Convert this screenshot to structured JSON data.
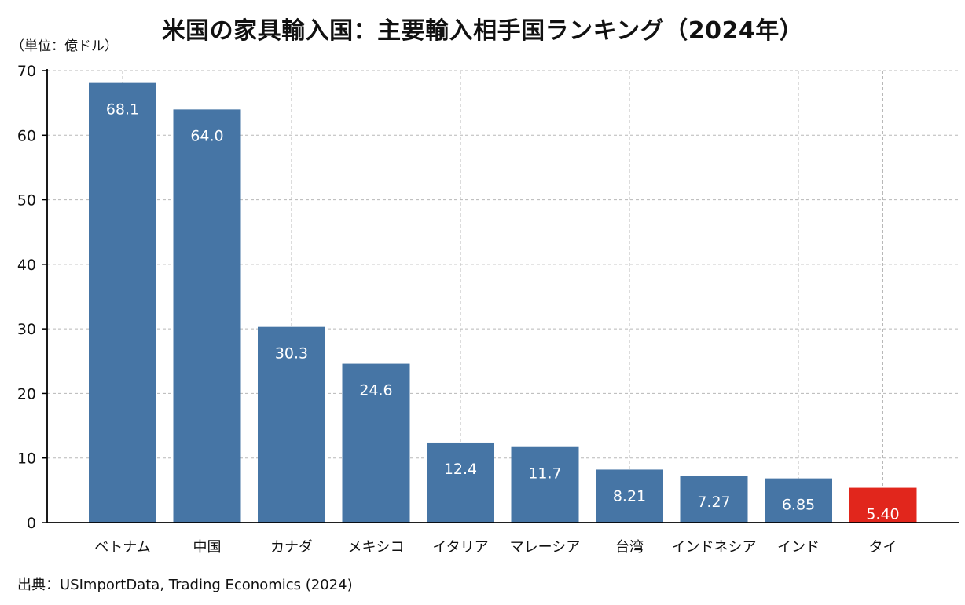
{
  "title": "米国の家具輸入国：主要輸入相手国ランキング（2024年）",
  "unit_label": "（単位：億ドル）",
  "source": "出典：USImportData, Trading Economics (2024)",
  "colors": {
    "default_bar": "#4675a5",
    "highlight_bar": "#e1261c"
  },
  "chart_data": {
    "type": "bar",
    "title": "米国の家具輸入国：主要輸入相手国ランキング（2024年）",
    "ylabel": "（単位：億ドル）",
    "xlabel": "",
    "ylim": [
      0,
      70
    ],
    "yticks": [
      0,
      10,
      20,
      30,
      40,
      50,
      60,
      70
    ],
    "grid": true,
    "categories": [
      "ベトナム",
      "中国",
      "カナダ",
      "メキシコ",
      "イタリア",
      "マレーシア",
      "台湾",
      "インドネシア",
      "インド",
      "タイ"
    ],
    "values": [
      68.1,
      64.0,
      30.3,
      24.6,
      12.4,
      11.7,
      8.21,
      7.27,
      6.85,
      5.4
    ],
    "data_labels": [
      "68.1",
      "64.0",
      "30.3",
      "24.6",
      "12.4",
      "11.7",
      "8.21",
      "7.27",
      "6.85",
      "5.40"
    ],
    "highlight_category": "タイ"
  }
}
